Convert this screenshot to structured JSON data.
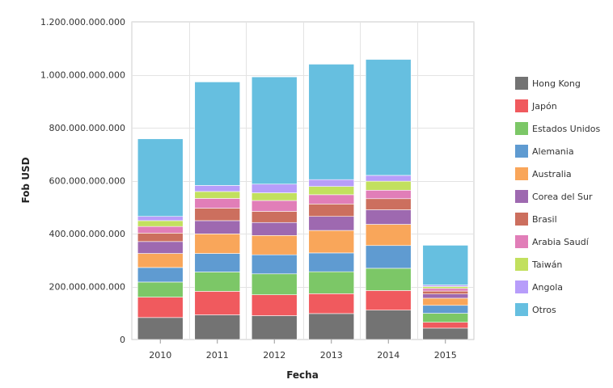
{
  "chart_data": {
    "type": "bar",
    "stacked": true,
    "title": "",
    "xlabel": "Fecha",
    "ylabel": "Fob USD",
    "ylim": [
      0,
      1200000000000
    ],
    "yticks": [
      0,
      200000000000,
      400000000000,
      600000000000,
      800000000000,
      1000000000000,
      1200000000000
    ],
    "ytick_labels": [
      "0",
      "200.000.000.000",
      "400.000.000.000",
      "600.000.000.000",
      "800.000.000.000",
      "1.000.000.000.000",
      "1.200.000.000.000"
    ],
    "grid": true,
    "legend_position": "right",
    "categories": [
      "2010",
      "2011",
      "2012",
      "2013",
      "2014",
      "2015"
    ],
    "series": [
      {
        "name": "Hong Kong",
        "color": "#737373",
        "values": [
          83000000000,
          93000000000,
          90000000000,
          98000000000,
          111000000000,
          43000000000
        ]
      },
      {
        "name": "Japón",
        "color": "#f05a5e",
        "values": [
          77000000000,
          89000000000,
          79000000000,
          75000000000,
          74000000000,
          22000000000
        ]
      },
      {
        "name": "Estados Unidos",
        "color": "#7cc767",
        "values": [
          57000000000,
          73000000000,
          79000000000,
          83000000000,
          84000000000,
          34000000000
        ]
      },
      {
        "name": "Alemania",
        "color": "#5f9bd1",
        "values": [
          55000000000,
          70000000000,
          72000000000,
          71000000000,
          86000000000,
          30000000000
        ]
      },
      {
        "name": "Australia",
        "color": "#f9a65a",
        "values": [
          53000000000,
          74000000000,
          73000000000,
          85000000000,
          80000000000,
          27000000000
        ]
      },
      {
        "name": "Corea del Sur",
        "color": "#9e69b0",
        "values": [
          45000000000,
          50000000000,
          49000000000,
          53000000000,
          55000000000,
          16000000000
        ]
      },
      {
        "name": "Brasil",
        "color": "#cc6f5e",
        "values": [
          32000000000,
          47000000000,
          42000000000,
          47000000000,
          42000000000,
          11000000000
        ]
      },
      {
        "name": "Arabia Saudí",
        "color": "#e17eb8",
        "values": [
          25000000000,
          37000000000,
          41000000000,
          35000000000,
          32000000000,
          10000000000
        ]
      },
      {
        "name": "Taiwán",
        "color": "#c2e05e",
        "values": [
          22000000000,
          26000000000,
          29000000000,
          31000000000,
          34000000000,
          7000000000
        ]
      },
      {
        "name": "Angola",
        "color": "#b79dfa",
        "values": [
          16000000000,
          23000000000,
          33000000000,
          26000000000,
          22000000000,
          6000000000
        ]
      },
      {
        "name": "Otros",
        "color": "#66bfe0",
        "values": [
          293000000000,
          391000000000,
          405000000000,
          436000000000,
          438000000000,
          150000000000
        ]
      }
    ]
  }
}
